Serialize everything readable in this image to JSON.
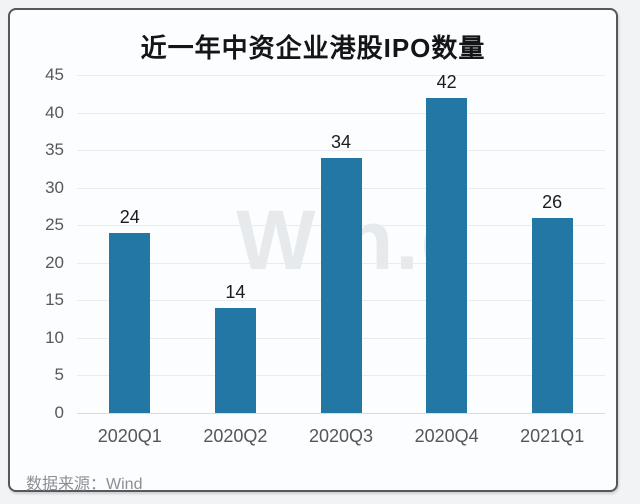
{
  "page": {
    "bg": "#f2f3f5"
  },
  "card": {
    "bg": "#fcfdfe",
    "border_color": "#54575c"
  },
  "title": "近一年中资企业港股IPO数量",
  "watermark": "Win.d",
  "source": {
    "label": "数据来源：",
    "value": "Wind"
  },
  "chart_data": {
    "type": "bar",
    "title": "近一年中资企业港股IPO数量",
    "categories": [
      "2020Q1",
      "2020Q2",
      "2020Q3",
      "2020Q4",
      "2021Q1"
    ],
    "values": [
      24,
      14,
      34,
      42,
      26
    ],
    "xlabel": "",
    "ylabel": "",
    "ylim": [
      0,
      45
    ],
    "ytick_step": 5,
    "yticks": [
      45,
      40,
      35,
      30,
      25,
      20,
      15,
      10,
      5,
      0
    ],
    "grid": true,
    "legend": "none",
    "bar_color": "#2377a4",
    "value_label_color": "#1b1c1e",
    "source_note": "数据来源：Wind"
  }
}
